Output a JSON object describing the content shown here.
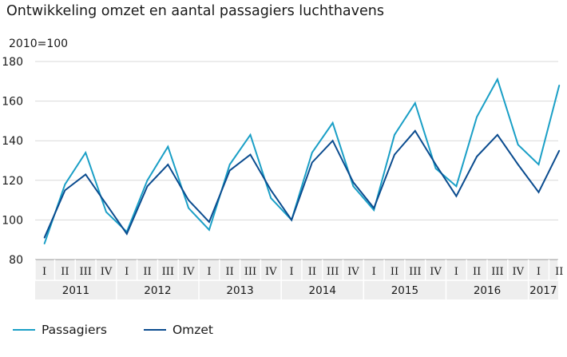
{
  "title": "Ontwikkeling omzet en aantal passagiers luchthavens",
  "subtitle": "2010=100",
  "colors": {
    "passagiers": "#1a9fc6",
    "omzet": "#0b4c8f",
    "grid": "#d9d9d9",
    "axis_band": "#eeeeee"
  },
  "chart_data": {
    "type": "line",
    "title": "Ontwikkeling omzet en aantal passagiers luchthavens",
    "ylabel": "2010=100",
    "xlabel": "",
    "ylim": [
      80,
      180
    ],
    "yticks": [
      80,
      100,
      120,
      140,
      160,
      180
    ],
    "grid": true,
    "legend_position": "bottom-left",
    "quarters": [
      "I",
      "II",
      "III",
      "IV",
      "I",
      "II",
      "III",
      "IV",
      "I",
      "II",
      "III",
      "IV",
      "I",
      "II",
      "III",
      "IV",
      "I",
      "II",
      "III",
      "IV",
      "I",
      "II",
      "III",
      "IV",
      "I",
      "II"
    ],
    "years": [
      {
        "label": "2011",
        "quarters": 4
      },
      {
        "label": "2012",
        "quarters": 4
      },
      {
        "label": "2013",
        "quarters": 4
      },
      {
        "label": "2014",
        "quarters": 4
      },
      {
        "label": "2015",
        "quarters": 4
      },
      {
        "label": "2016",
        "quarters": 4
      },
      {
        "label": "2017",
        "quarters": 2
      }
    ],
    "series": [
      {
        "name": "Passagiers",
        "color": "#1a9fc6",
        "values": [
          88,
          118,
          134,
          104,
          94,
          120,
          137,
          106,
          95,
          128,
          143,
          111,
          100,
          134,
          149,
          117,
          105,
          143,
          159,
          126,
          117,
          152,
          171,
          138,
          128,
          168
        ]
      },
      {
        "name": "Omzet",
        "color": "#0b4c8f",
        "values": [
          91,
          115,
          123,
          108,
          93,
          117,
          128,
          110,
          99,
          125,
          133,
          115,
          100,
          129,
          140,
          119,
          106,
          133,
          145,
          128,
          112,
          132,
          143,
          128,
          114,
          135
        ]
      }
    ]
  }
}
